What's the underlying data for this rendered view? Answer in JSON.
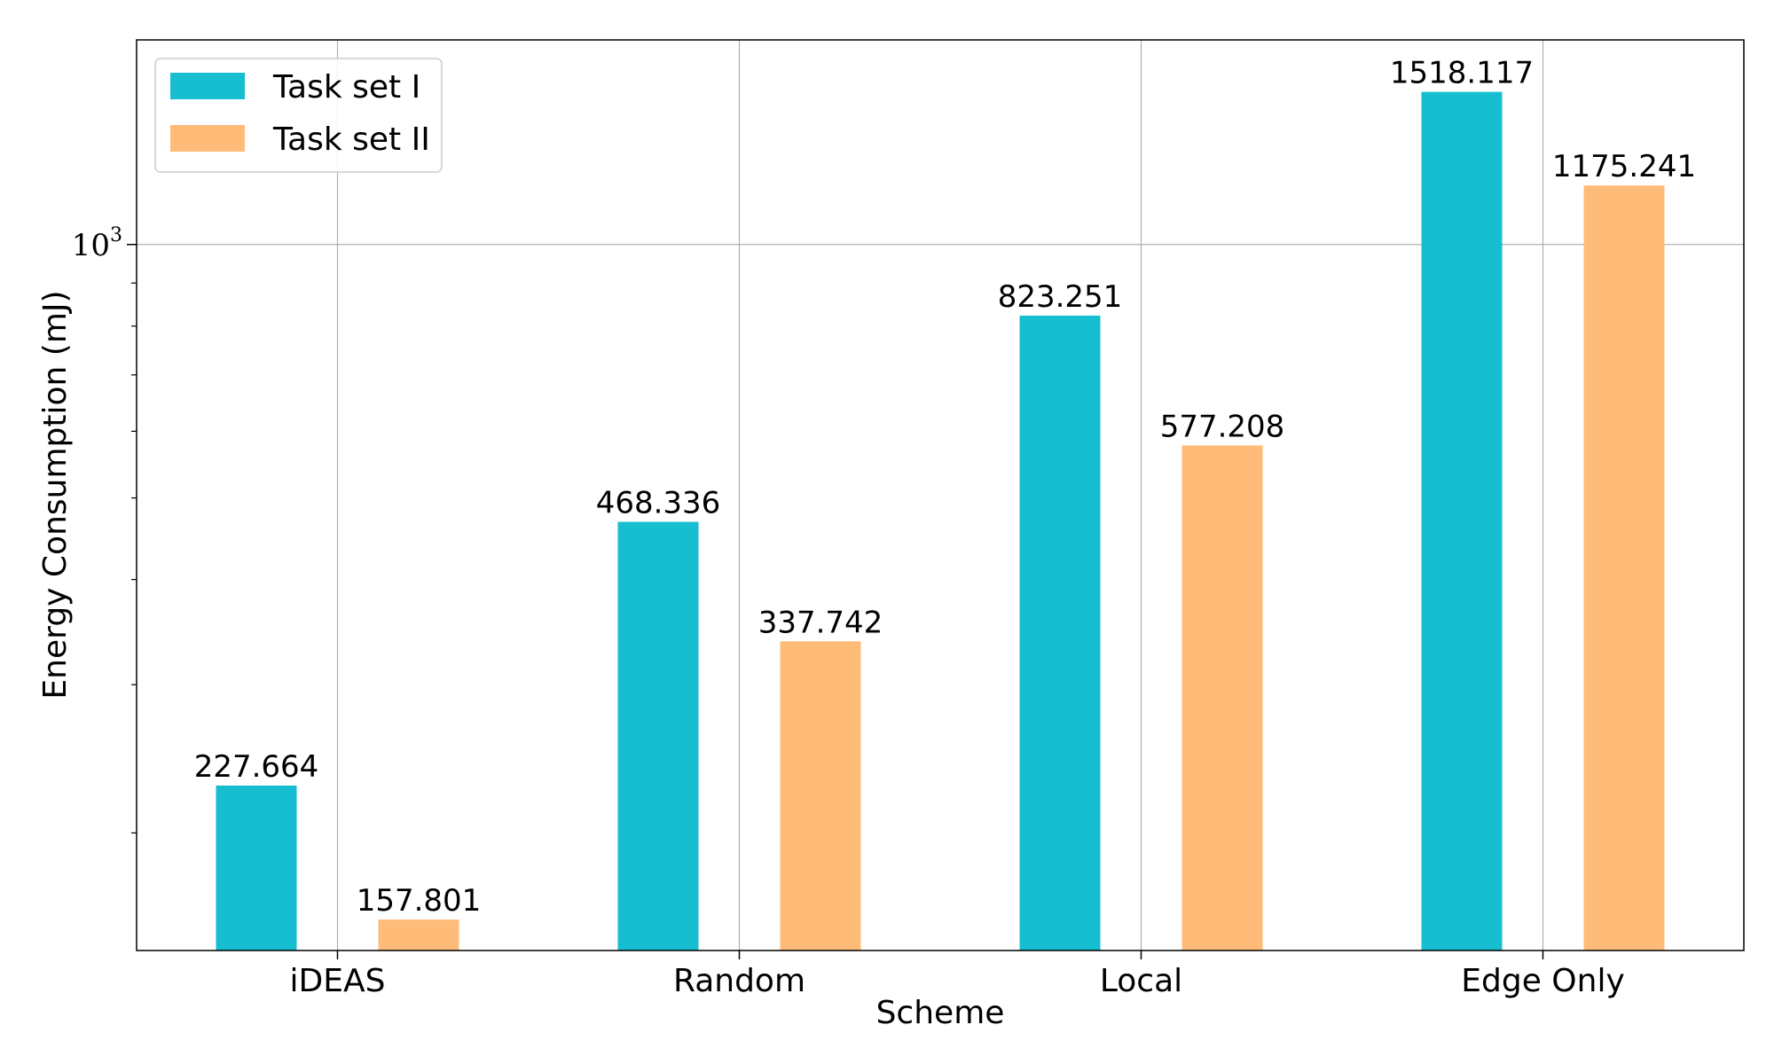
{
  "chart_data": {
    "type": "bar",
    "categories": [
      "iDEAS",
      "Random",
      "Local",
      "Edge Only"
    ],
    "series": [
      {
        "name": "Task set I",
        "color": "#17becf",
        "values": [
          227.664,
          468.336,
          823.251,
          1518.117
        ]
      },
      {
        "name": "Task set II",
        "color": "#ffbb78",
        "values": [
          157.801,
          337.742,
          577.208,
          1175.241
        ]
      }
    ],
    "title": "",
    "xlabel": "Scheme",
    "ylabel": "Energy Consumption (mJ)",
    "yscale": "log",
    "ylim": [
      145,
      1750
    ],
    "major_tick": {
      "value": 1000,
      "base": "10",
      "exponent": "3"
    },
    "minor_ticks": [
      200,
      300,
      400,
      500,
      600,
      700,
      800,
      900
    ],
    "grid": true,
    "legend_position": "top-left"
  }
}
